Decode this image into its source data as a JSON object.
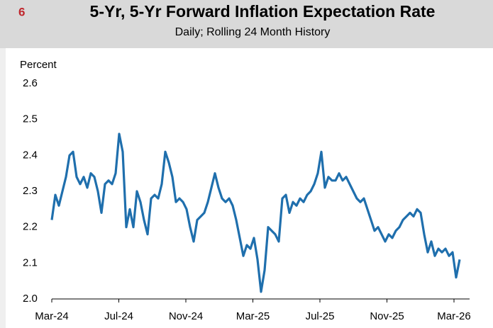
{
  "chart_data": {
    "type": "line",
    "number": "6",
    "title": "5-Yr, 5-Yr Forward Inflation Expectation Rate",
    "subtitle": "Daily; Rolling 24 Month History",
    "y_label": "Percent",
    "series": [
      {
        "name": "5-Yr, 5-Yr Forward Inflation Expectation Rate",
        "color": "#1f6fad",
        "values": [
          2.22,
          2.29,
          2.26,
          2.3,
          2.34,
          2.4,
          2.41,
          2.34,
          2.32,
          2.34,
          2.31,
          2.35,
          2.34,
          2.3,
          2.24,
          2.32,
          2.33,
          2.32,
          2.35,
          2.46,
          2.41,
          2.2,
          2.25,
          2.2,
          2.3,
          2.27,
          2.22,
          2.18,
          2.28,
          2.29,
          2.28,
          2.32,
          2.41,
          2.38,
          2.34,
          2.27,
          2.28,
          2.27,
          2.25,
          2.2,
          2.16,
          2.22,
          2.23,
          2.24,
          2.27,
          2.31,
          2.35,
          2.31,
          2.28,
          2.27,
          2.28,
          2.26,
          2.22,
          2.17,
          2.12,
          2.15,
          2.14,
          2.17,
          2.11,
          2.02,
          2.08,
          2.2,
          2.19,
          2.18,
          2.16,
          2.28,
          2.29,
          2.24,
          2.27,
          2.26,
          2.28,
          2.27,
          2.29,
          2.3,
          2.32,
          2.35,
          2.41,
          2.31,
          2.34,
          2.33,
          2.33,
          2.35,
          2.33,
          2.34,
          2.32,
          2.3,
          2.28,
          2.27,
          2.28,
          2.25,
          2.22,
          2.19,
          2.2,
          2.18,
          2.16,
          2.18,
          2.17,
          2.19,
          2.2,
          2.22,
          2.23,
          2.24,
          2.23,
          2.25,
          2.24,
          2.18,
          2.13,
          2.16,
          2.12,
          2.14,
          2.13,
          2.14,
          2.12,
          2.13,
          2.06,
          2.11
        ]
      }
    ],
    "xlim": [
      0,
      115
    ],
    "xticks": [
      {
        "value": 0,
        "label": "Mar-24"
      },
      {
        "value": 18.9,
        "label": "Jul-24"
      },
      {
        "value": 37.8,
        "label": "Nov-24"
      },
      {
        "value": 56.7,
        "label": "Mar-25"
      },
      {
        "value": 75.6,
        "label": "Jul-25"
      },
      {
        "value": 94.5,
        "label": "Nov-25"
      },
      {
        "value": 113.4,
        "label": "Mar-26"
      }
    ],
    "ylim": [
      2.0,
      2.6
    ],
    "yticks": [
      {
        "value": 2.0,
        "label": "2.0"
      },
      2.1,
      2.2,
      2.3,
      2.4,
      2.5,
      2.6
    ]
  }
}
